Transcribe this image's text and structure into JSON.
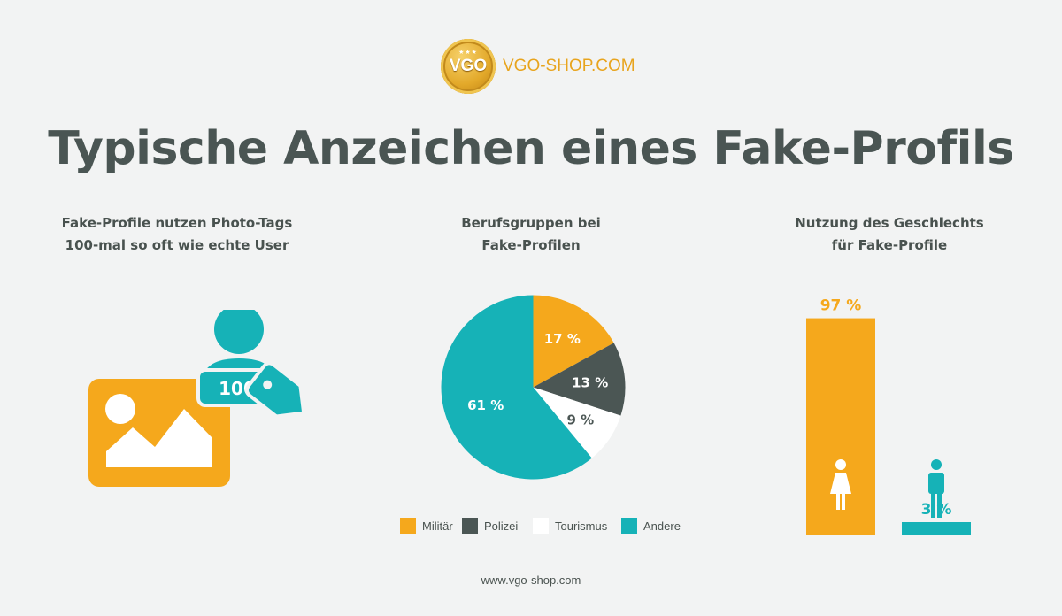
{
  "brand": {
    "coin_text": "VGO",
    "coin_stars": "★★★",
    "name": "VGO-SHOP.COM",
    "gold": "#e8a41d"
  },
  "title": "Typische Anzeichen eines Fake-Profils",
  "panel1": {
    "line1": "Fake-Profile nutzen Photo-Tags",
    "line2": "100-mal so oft wie echte User",
    "badge_text": "100",
    "icons": [
      "photo-icon",
      "user-icon",
      "tag-icon"
    ]
  },
  "chart_data": [
    {
      "type": "pie",
      "title": "Berufsgruppen bei Fake-Profilen",
      "title_line1": "Berufsgruppen bei",
      "title_line2": "Fake-Profilen",
      "slices": [
        {
          "name": "Militär",
          "value": 17,
          "label": "17 %",
          "color": "#f5a81c"
        },
        {
          "name": "Polizei",
          "value": 13,
          "label": "13 %",
          "color": "#4b5654"
        },
        {
          "name": "Tourismus",
          "value": 9,
          "label": "9 %",
          "color": "#ffffff"
        },
        {
          "name": "Andere",
          "value": 61,
          "label": "61 %",
          "color": "#16b2b7"
        }
      ],
      "legend_position": "bottom"
    },
    {
      "type": "bar",
      "title_line1": "Nutzung des Geschlechts",
      "title_line2": "für Fake-Profile",
      "categories": [
        "female",
        "male"
      ],
      "values": [
        97,
        3
      ],
      "labels": [
        "97 %",
        "3 %"
      ],
      "colors": [
        "#f5a81c",
        "#16b2b7"
      ],
      "icons": [
        "female-icon",
        "male-icon"
      ],
      "ylim": [
        0,
        100
      ]
    }
  ],
  "footer": "www.vgo-shop.com"
}
